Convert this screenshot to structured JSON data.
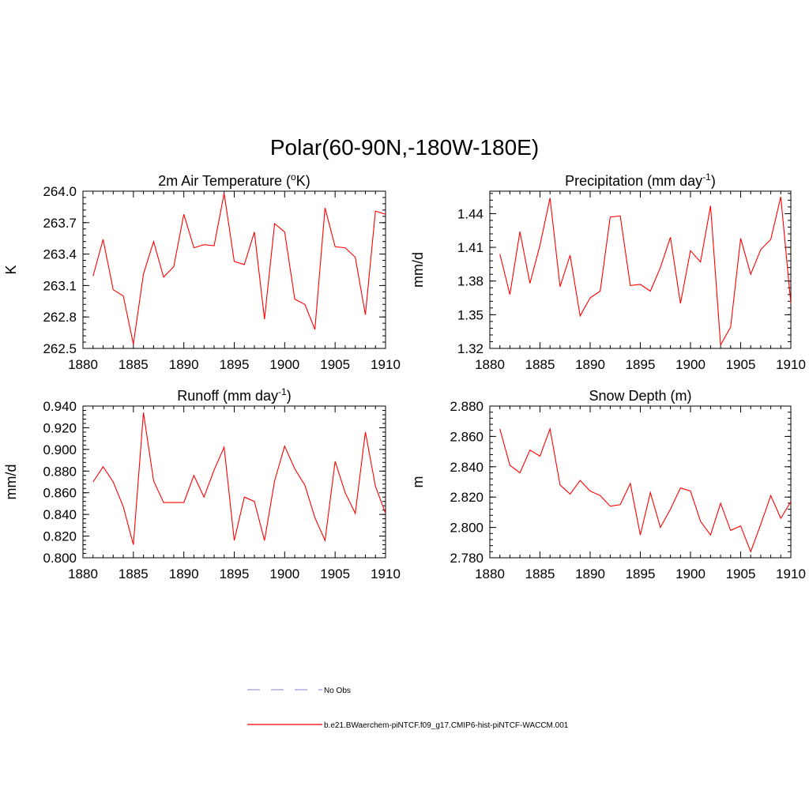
{
  "title": "Polar(60-90N,-180W-180E)",
  "chart_data": [
    {
      "type": "line",
      "title": "2m Air Temperature (",
      "title_sup": "o",
      "title_after": "K)",
      "ylabel": "K",
      "xlim": [
        1880,
        1910
      ],
      "ylim": [
        262.5,
        264.0
      ],
      "yticks": [
        "264.0",
        "263.7",
        "263.4",
        "263.1",
        "262.8",
        "262.5"
      ],
      "xticks": [
        "1880",
        "1885",
        "1890",
        "1895",
        "1900",
        "1905",
        "1910"
      ],
      "series": [
        {
          "name": "b.e21.BWaerchem-piNTCF.f09_g17.CMIP6-hist-piNTCF-WACCM.001",
          "x": [
            1881,
            1882,
            1883,
            1884,
            1885,
            1886,
            1887,
            1888,
            1889,
            1890,
            1891,
            1892,
            1893,
            1894,
            1895,
            1896,
            1897,
            1898,
            1899,
            1900,
            1901,
            1902,
            1903,
            1904,
            1905,
            1906,
            1907,
            1908,
            1909,
            1910
          ],
          "y": [
            263.19,
            263.54,
            263.06,
            263.0,
            262.54,
            263.21,
            263.52,
            263.18,
            263.28,
            263.78,
            263.46,
            263.49,
            263.48,
            263.98,
            263.33,
            263.3,
            263.61,
            262.78,
            263.69,
            263.61,
            262.97,
            262.92,
            262.68,
            263.84,
            263.47,
            263.46,
            263.37,
            262.82,
            263.81,
            263.78
          ]
        }
      ]
    },
    {
      "type": "line",
      "title": "Precipitation (mm day",
      "title_sup": "-1",
      "title_after": ")",
      "ylabel": "mm/d",
      "xlim": [
        1880,
        1910
      ],
      "ylim": [
        1.32,
        1.46
      ],
      "yticks": [
        "1.44",
        "1.41",
        "1.38",
        "1.35",
        "1.32"
      ],
      "xticks": [
        "1880",
        "1885",
        "1890",
        "1895",
        "1900",
        "1905",
        "1910"
      ],
      "series": [
        {
          "name": "b.e21.BWaerchem-piNTCF.f09_g17.CMIP6-hist-piNTCF-WACCM.001",
          "x": [
            1881,
            1882,
            1883,
            1884,
            1885,
            1886,
            1887,
            1888,
            1889,
            1890,
            1891,
            1892,
            1893,
            1894,
            1895,
            1896,
            1897,
            1898,
            1899,
            1900,
            1901,
            1902,
            1903,
            1904,
            1905,
            1906,
            1907,
            1908,
            1909,
            1910
          ],
          "y": [
            1.404,
            1.368,
            1.424,
            1.378,
            1.412,
            1.454,
            1.375,
            1.403,
            1.349,
            1.365,
            1.371,
            1.437,
            1.438,
            1.376,
            1.377,
            1.371,
            1.392,
            1.419,
            1.36,
            1.407,
            1.397,
            1.447,
            1.323,
            1.339,
            1.418,
            1.386,
            1.408,
            1.417,
            1.455,
            1.36
          ]
        }
      ]
    },
    {
      "type": "line",
      "title": "Runoff (mm day",
      "title_sup": "-1",
      "title_after": ")",
      "ylabel": "mm/d",
      "xlim": [
        1880,
        1910
      ],
      "ylim": [
        0.8,
        0.94
      ],
      "yticks": [
        "0.940",
        "0.920",
        "0.900",
        "0.880",
        "0.860",
        "0.840",
        "0.820",
        "0.800"
      ],
      "xticks": [
        "1880",
        "1885",
        "1890",
        "1895",
        "1900",
        "1905",
        "1910"
      ],
      "series": [
        {
          "name": "b.e21.BWaerchem-piNTCF.f09_g17.CMIP6-hist-piNTCF-WACCM.001",
          "x": [
            1881,
            1882,
            1883,
            1884,
            1885,
            1886,
            1887,
            1888,
            1889,
            1890,
            1891,
            1892,
            1893,
            1894,
            1895,
            1896,
            1897,
            1898,
            1899,
            1900,
            1901,
            1902,
            1903,
            1904,
            1905,
            1906,
            1907,
            1908,
            1909,
            1910
          ],
          "y": [
            0.87,
            0.884,
            0.87,
            0.847,
            0.812,
            0.934,
            0.871,
            0.851,
            0.851,
            0.851,
            0.876,
            0.856,
            0.881,
            0.902,
            0.816,
            0.856,
            0.852,
            0.816,
            0.871,
            0.903,
            0.882,
            0.867,
            0.837,
            0.816,
            0.889,
            0.86,
            0.841,
            0.916,
            0.866,
            0.841
          ]
        }
      ]
    },
    {
      "type": "line",
      "title": "Snow Depth (m)",
      "title_sup": "",
      "title_after": "",
      "ylabel": "m",
      "xlim": [
        1880,
        1910
      ],
      "ylim": [
        2.78,
        2.88
      ],
      "yticks": [
        "2.880",
        "2.860",
        "2.840",
        "2.820",
        "2.800",
        "2.780"
      ],
      "xticks": [
        "1880",
        "1885",
        "1890",
        "1895",
        "1900",
        "1905",
        "1910"
      ],
      "series": [
        {
          "name": "b.e21.BWaerchem-piNTCF.f09_g17.CMIP6-hist-piNTCF-WACCM.001",
          "x": [
            1881,
            1882,
            1883,
            1884,
            1885,
            1886,
            1887,
            1888,
            1889,
            1890,
            1891,
            1892,
            1893,
            1894,
            1895,
            1896,
            1897,
            1898,
            1899,
            1900,
            1901,
            1902,
            1903,
            1904,
            1905,
            1906,
            1907,
            1908,
            1909,
            1910
          ],
          "y": [
            2.865,
            2.841,
            2.836,
            2.851,
            2.847,
            2.865,
            2.828,
            2.822,
            2.831,
            2.824,
            2.821,
            2.814,
            2.815,
            2.829,
            2.795,
            2.823,
            2.8,
            2.812,
            2.826,
            2.824,
            2.804,
            2.795,
            2.816,
            2.798,
            2.801,
            2.784,
            2.802,
            2.821,
            2.806,
            2.817
          ]
        }
      ]
    }
  ],
  "legend": {
    "items": [
      {
        "label": "No Obs",
        "color": "#9999dd",
        "dashed": true
      },
      {
        "label": "b.e21.BWaerchem-piNTCF.f09_g17.CMIP6-hist-piNTCF-WACCM.001",
        "color": "#ff0000",
        "dashed": false
      }
    ]
  },
  "colors": {
    "series": "#ff0000",
    "axis": "#000000"
  }
}
